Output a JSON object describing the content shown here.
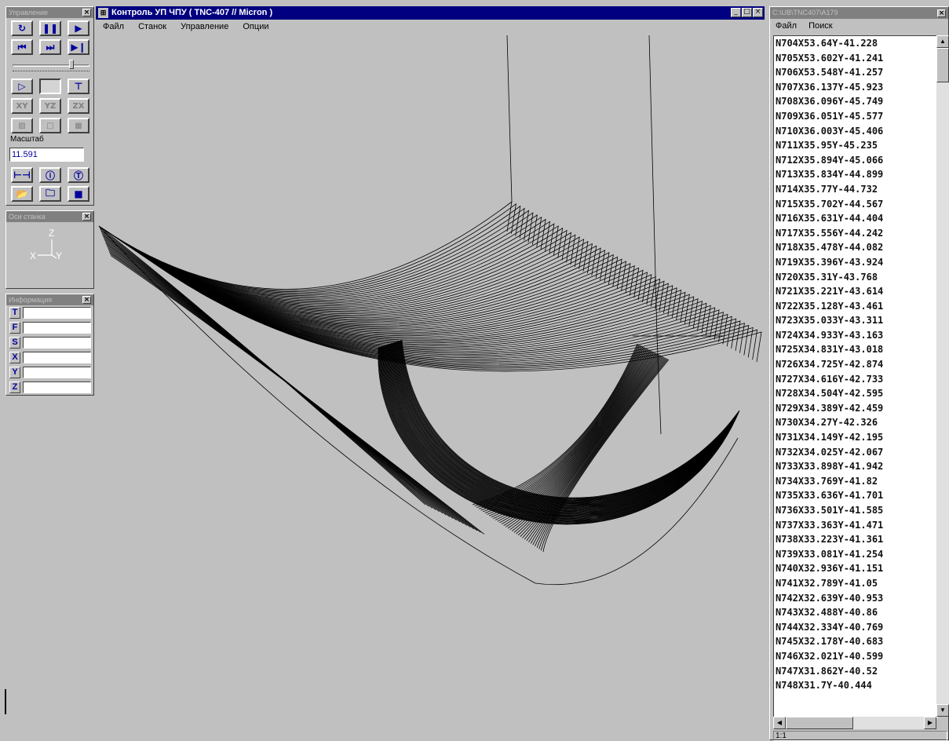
{
  "colors": {
    "titlebar": "#000080",
    "inactive_caption": "#808080",
    "face": "#c0c0c0",
    "icon_blue": "#00009c"
  },
  "control_panel": {
    "title": "Управление",
    "toolbar_icons": [
      [
        "restart-icon",
        "pause-icon",
        "play-icon"
      ],
      [
        "to-start-icon",
        "step-icon",
        "to-end-icon"
      ],
      [
        "toolpath-icon",
        "blank-icon",
        "tool-icon"
      ],
      [
        "xy-plane-icon",
        "yz-plane-icon",
        "zx-plane-icon"
      ],
      [
        "view-a-icon",
        "view-b-icon",
        "view-c-icon"
      ],
      [
        "measure-icon",
        "info-icon",
        "tool-select-icon"
      ],
      [
        "open-file-icon",
        "save-file-icon",
        "folder-icon"
      ]
    ],
    "plane_labels": [
      "XY",
      "YZ",
      "ZX"
    ],
    "scale_label": "Масштаб",
    "scale_value": "11.591"
  },
  "axes_panel": {
    "title": "Оси станка",
    "z": "Z",
    "x": "X",
    "y": "Y"
  },
  "info_panel": {
    "title": "Информация",
    "fields": [
      {
        "label": "T",
        "value": ""
      },
      {
        "label": "F",
        "value": ""
      },
      {
        "label": "S",
        "value": ""
      },
      {
        "label": "X",
        "value": ""
      },
      {
        "label": "Y",
        "value": ""
      },
      {
        "label": "Z",
        "value": ""
      }
    ]
  },
  "main_window": {
    "title": "Контроль УП ЧПУ ( TNC-407 // Micron )",
    "menu": [
      "Файл",
      "Станок",
      "Управление",
      "Опции"
    ],
    "window_buttons": [
      "_",
      "□",
      "×"
    ]
  },
  "program_window": {
    "title": "C:\\UB\\TNC407\\A179",
    "menu": [
      "Файл",
      "Поиск"
    ],
    "lines": [
      "N704X53.64Y-41.228",
      "N705X53.602Y-41.241",
      "N706X53.548Y-41.257",
      "N707X36.137Y-45.923",
      "N708X36.096Y-45.749",
      "N709X36.051Y-45.577",
      "N710X36.003Y-45.406",
      "N711X35.95Y-45.235",
      "N712X35.894Y-45.066",
      "N713X35.834Y-44.899",
      "N714X35.77Y-44.732",
      "N715X35.702Y-44.567",
      "N716X35.631Y-44.404",
      "N717X35.556Y-44.242",
      "N718X35.478Y-44.082",
      "N719X35.396Y-43.924",
      "N720X35.31Y-43.768",
      "N721X35.221Y-43.614",
      "N722X35.128Y-43.461",
      "N723X35.033Y-43.311",
      "N724X34.933Y-43.163",
      "N725X34.831Y-43.018",
      "N726X34.725Y-42.874",
      "N727X34.616Y-42.733",
      "N728X34.504Y-42.595",
      "N729X34.389Y-42.459",
      "N730X34.27Y-42.326",
      "N731X34.149Y-42.195",
      "N732X34.025Y-42.067",
      "N733X33.898Y-41.942",
      "N734X33.769Y-41.82",
      "N735X33.636Y-41.701",
      "N736X33.501Y-41.585",
      "N737X33.363Y-41.471",
      "N738X33.223Y-41.361",
      "N739X33.081Y-41.254",
      "N740X32.936Y-41.151",
      "N741X32.789Y-41.05",
      "N742X32.639Y-40.953",
      "N743X32.488Y-40.86",
      "N744X32.334Y-40.769",
      "N745X32.178Y-40.683",
      "N746X32.021Y-40.599",
      "N747X31.862Y-40.52",
      "N748X31.7Y-40.444"
    ],
    "status": "1:1"
  }
}
